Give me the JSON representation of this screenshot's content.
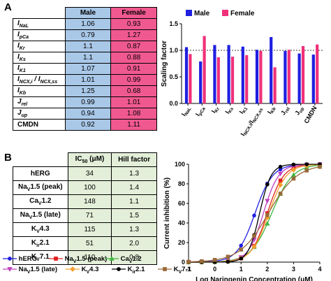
{
  "panel_a": {
    "letter": "A",
    "table": {
      "headers": [
        "",
        "Male",
        "Female"
      ],
      "rows": [
        {
          "label": "I_NaL",
          "male": "1.06",
          "female": "0.93"
        },
        {
          "label": "I_pCa",
          "male": "0.79",
          "female": "1.27"
        },
        {
          "label": "I_Kr",
          "male": "1.1",
          "female": "0.87"
        },
        {
          "label": "I_Ks",
          "male": "1.1",
          "female": "0.88"
        },
        {
          "label": "I_K1",
          "male": "1.07",
          "female": "0.91"
        },
        {
          "label": "I_NCX,i / I_NCX,ss",
          "male": "1.01",
          "female": "0.99"
        },
        {
          "label": "I_Kb",
          "male": "1.25",
          "female": "0.68"
        },
        {
          "label": "J_rel",
          "male": "0.99",
          "female": "1.01"
        },
        {
          "label": "J_up",
          "male": "0.94",
          "female": "1.08"
        },
        {
          "label": "CMDN",
          "male": "0.92",
          "female": "1.11"
        }
      ]
    }
  },
  "panel_b": {
    "letter": "B",
    "table": {
      "headers": [
        "",
        "IC50 (μM)",
        "Hill factor"
      ],
      "rows": [
        {
          "label": "hERG",
          "ic50": "34",
          "hill": "1.3"
        },
        {
          "label": "NaV1.5 (peak)",
          "ic50": "100",
          "hill": "1.4"
        },
        {
          "label": "CaV1.2",
          "ic50": "148",
          "hill": "1.1"
        },
        {
          "label": "NaV1.5 (late)",
          "ic50": "71",
          "hill": "1.5"
        },
        {
          "label": "KV4.3",
          "ic50": "115",
          "hill": "1.3"
        },
        {
          "label": "Kir2.1",
          "ic50": "51",
          "hill": "2.0"
        },
        {
          "label": "KV7.1",
          "ic50": "110",
          "hill": "0.8"
        }
      ]
    }
  },
  "chart_data": [
    {
      "type": "bar",
      "categories": [
        "I_NaL",
        "I_pCa",
        "I_Kr",
        "I_Ks",
        "I_K1",
        "I_NCX,i/I_NCX,ss",
        "I_Kb",
        "J_rel",
        "J_up",
        "CMDN"
      ],
      "series": [
        {
          "name": "Male",
          "color": "#1f1fe0",
          "values": [
            1.06,
            0.79,
            1.1,
            1.1,
            1.07,
            1.01,
            1.25,
            0.99,
            0.94,
            0.92
          ]
        },
        {
          "name": "Female",
          "color": "#f0307a",
          "values": [
            0.93,
            1.27,
            0.87,
            0.88,
            0.91,
            0.99,
            0.68,
            1.01,
            1.08,
            1.11
          ]
        }
      ],
      "ylabel": "Scaling factor",
      "ylim": [
        0,
        1.5
      ],
      "yticks": [
        "0.0",
        "0.5",
        "1.0",
        "1.5"
      ],
      "reference_line": 1.0,
      "legend": "top"
    },
    {
      "type": "line",
      "xlabel": "Log Naringenin Concentration (μM)",
      "ylabel": "Current inhibition (%)",
      "xlim": [
        -1,
        4
      ],
      "ylim": [
        0,
        100
      ],
      "xticks": [
        "-1",
        "0",
        "1",
        "2",
        "3",
        "4"
      ],
      "yticks": [
        "0",
        "20",
        "40",
        "60",
        "80",
        "100"
      ],
      "x_points": [
        -1,
        -0.5,
        0,
        0.5,
        1,
        1.5,
        2,
        2.5,
        3,
        3.5,
        4
      ],
      "series": [
        {
          "name": "hERG",
          "color": "#1f1fe0",
          "marker": "circle",
          "ic50": 34,
          "hill": 1.3
        },
        {
          "name": "NaV1.5 (peak)",
          "color": "#e02020",
          "marker": "square",
          "ic50": 100,
          "hill": 1.4
        },
        {
          "name": "CaV1.2",
          "color": "#3fb53f",
          "marker": "triangle",
          "ic50": 148,
          "hill": 1.1
        },
        {
          "name": "NaV1.5 (late)",
          "color": "#c040c0",
          "marker": "triangle-down",
          "ic50": 71,
          "hill": 1.5
        },
        {
          "name": "KV4.3",
          "color": "#f5a030",
          "marker": "diamond",
          "ic50": 115,
          "hill": 1.3
        },
        {
          "name": "Kir2.1",
          "color": "#000000",
          "marker": "circle",
          "ic50": 51,
          "hill": 2.0
        },
        {
          "name": "KV7.1",
          "color": "#9a6a3a",
          "marker": "square",
          "ic50": 110,
          "hill": 0.8
        }
      ],
      "legend": "bottom"
    }
  ]
}
